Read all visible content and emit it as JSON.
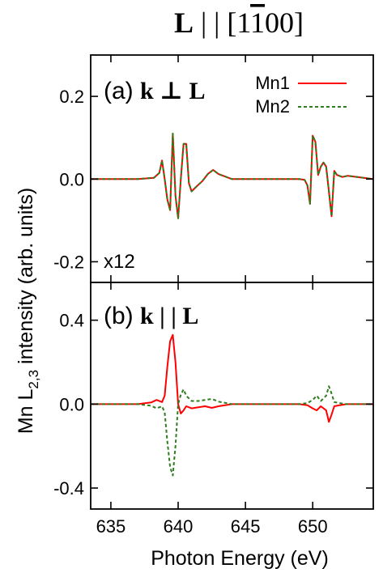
{
  "figure_title": {
    "bold_part": "L",
    "rest_prefix": " | | [1",
    "overbar_digit": "1",
    "rest_suffix": "00]"
  },
  "ylabel_main": "Mn L",
  "ylabel_sub": "2,3",
  "ylabel_rest": " intensity (arb. units)",
  "chart_data": [
    {
      "type": "line",
      "panel": "(a)",
      "panel_label_prefix": "(a) ",
      "panel_label_math": "k ⊥ L",
      "scale_annotation": "x12",
      "xlim": [
        633.5,
        654.5
      ],
      "ylim": [
        -0.25,
        0.3
      ],
      "yticks": [
        0.2,
        0.0,
        -0.2
      ],
      "ytick_labels": [
        "0.2",
        "0.0",
        "-0.2"
      ],
      "xticks": [
        635,
        640,
        645,
        650
      ],
      "legend": {
        "placement": "top-right"
      },
      "colors": {
        "Mn1": "#ff0000",
        "Mn2": "#2e7d1e"
      },
      "series": [
        {
          "name": "Mn1",
          "style": "solid",
          "color": "#ff0000",
          "x": [
            633.5,
            637.0,
            638.2,
            638.6,
            638.8,
            639.0,
            639.2,
            639.4,
            639.6,
            639.8,
            640.0,
            640.2,
            640.4,
            640.6,
            640.8,
            641.0,
            641.3,
            641.8,
            642.2,
            642.6,
            643.0,
            644.0,
            646.0,
            648.0,
            649.0,
            649.4,
            649.6,
            649.8,
            650.0,
            650.2,
            650.4,
            650.6,
            650.8,
            651.0,
            651.2,
            651.4,
            651.6,
            651.8,
            652.2,
            652.6,
            654.5
          ],
          "y": [
            0.0,
            0.0,
            0.003,
            0.015,
            0.045,
            0.0,
            -0.05,
            -0.075,
            0.11,
            -0.04,
            -0.095,
            0.0,
            0.085,
            0.085,
            -0.01,
            -0.03,
            -0.02,
            -0.005,
            0.012,
            0.022,
            0.012,
            0.0,
            0.0,
            0.0,
            0.0,
            -0.002,
            -0.015,
            -0.06,
            0.105,
            0.09,
            0.01,
            0.03,
            0.04,
            0.03,
            -0.03,
            -0.09,
            0.02,
            0.01,
            0.005,
            0.008,
            0.0
          ]
        },
        {
          "name": "Mn2",
          "style": "dashed",
          "color": "#2e7d1e",
          "x": [
            633.5,
            637.0,
            638.2,
            638.6,
            638.8,
            639.0,
            639.2,
            639.4,
            639.6,
            639.8,
            640.0,
            640.2,
            640.4,
            640.6,
            640.8,
            641.0,
            641.3,
            641.8,
            642.2,
            642.6,
            643.0,
            644.0,
            646.0,
            648.0,
            649.0,
            649.4,
            649.6,
            649.8,
            650.0,
            650.2,
            650.4,
            650.6,
            650.8,
            651.0,
            651.2,
            651.4,
            651.6,
            651.8,
            652.2,
            652.6,
            654.5
          ],
          "y": [
            0.0,
            0.0,
            0.003,
            0.015,
            0.045,
            0.0,
            -0.05,
            -0.075,
            0.11,
            -0.04,
            -0.095,
            0.0,
            0.085,
            0.085,
            -0.01,
            -0.03,
            -0.02,
            -0.005,
            0.012,
            0.022,
            0.012,
            0.0,
            0.0,
            0.0,
            0.0,
            -0.002,
            -0.015,
            -0.06,
            0.105,
            0.09,
            0.01,
            0.03,
            0.04,
            0.03,
            -0.03,
            -0.09,
            0.02,
            0.01,
            0.005,
            0.008,
            0.0
          ]
        }
      ]
    },
    {
      "type": "line",
      "panel": "(b)",
      "panel_label_prefix": "(b) ",
      "panel_label_math": "k | | L",
      "xlabel": "Photon Energy (eV)",
      "xlim": [
        633.5,
        654.5
      ],
      "ylim": [
        -0.5,
        0.58
      ],
      "yticks": [
        0.4,
        0.0,
        -0.4
      ],
      "ytick_labels": [
        "0.4",
        "0.0",
        "-0.4"
      ],
      "xticks": [
        635,
        640,
        645,
        650
      ],
      "xtick_labels": [
        "635",
        "640",
        "645",
        "650"
      ],
      "colors": {
        "Mn1": "#ff0000",
        "Mn2": "#2e7d1e"
      },
      "series": [
        {
          "name": "Mn1",
          "style": "solid",
          "color": "#ff0000",
          "x": [
            633.5,
            637.0,
            638.0,
            638.4,
            638.8,
            639.0,
            639.2,
            639.4,
            639.6,
            639.8,
            640.0,
            640.2,
            640.4,
            640.6,
            641.0,
            641.5,
            642.0,
            642.5,
            643.0,
            644.0,
            646.0,
            648.0,
            649.0,
            649.6,
            650.0,
            650.3,
            650.6,
            651.0,
            651.2,
            651.4,
            651.6,
            652.0,
            652.5,
            654.5
          ],
          "y": [
            0.0,
            0.0,
            0.008,
            0.02,
            0.01,
            0.04,
            0.18,
            0.3,
            0.33,
            0.2,
            0.0,
            -0.045,
            -0.03,
            -0.01,
            -0.02,
            -0.015,
            -0.01,
            -0.018,
            -0.01,
            0.0,
            0.0,
            0.0,
            0.0,
            -0.005,
            -0.02,
            -0.03,
            -0.01,
            -0.03,
            -0.085,
            -0.05,
            -0.01,
            -0.005,
            0.0,
            0.0
          ]
        },
        {
          "name": "Mn2",
          "style": "dashed",
          "color": "#2e7d1e",
          "x": [
            633.5,
            637.0,
            638.0,
            638.4,
            638.8,
            639.0,
            639.2,
            639.4,
            639.6,
            639.8,
            640.0,
            640.2,
            640.4,
            640.6,
            641.0,
            641.5,
            642.0,
            642.5,
            643.0,
            644.0,
            646.0,
            648.0,
            649.0,
            649.6,
            650.0,
            650.3,
            650.6,
            651.0,
            651.2,
            651.4,
            651.6,
            652.0,
            652.5,
            654.5
          ],
          "y": [
            0.0,
            0.0,
            -0.008,
            -0.02,
            -0.01,
            -0.04,
            -0.18,
            -0.3,
            -0.34,
            -0.2,
            0.0,
            0.045,
            0.07,
            0.04,
            0.015,
            0.015,
            0.02,
            0.025,
            0.012,
            0.0,
            0.0,
            0.0,
            0.0,
            0.005,
            0.02,
            0.04,
            0.015,
            0.04,
            0.085,
            0.05,
            0.01,
            0.005,
            0.0,
            0.0
          ]
        }
      ]
    }
  ]
}
